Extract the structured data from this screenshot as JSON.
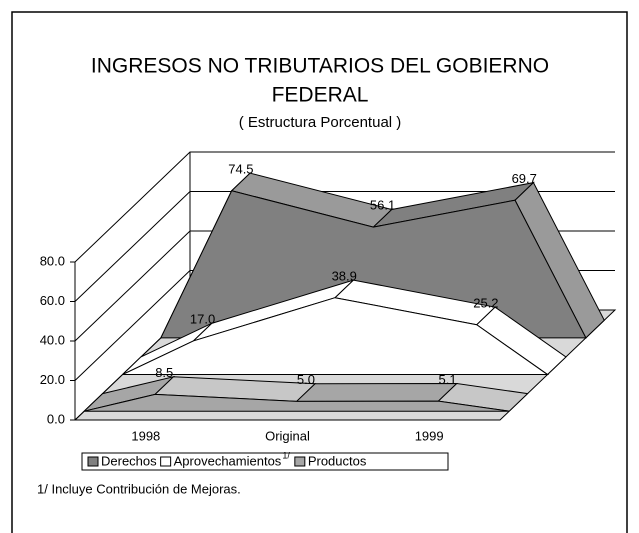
{
  "chart_data": {
    "type": "area3d",
    "title_lines": [
      "INGRESOS NO TRIBUTARIOS DEL GOBIERNO",
      "FEDERAL"
    ],
    "subtitle": "( Estructura Porcentual )",
    "categories": [
      "1998",
      "Original",
      "1999"
    ],
    "ylim": [
      0,
      80
    ],
    "yticks": [
      {
        "value": 0,
        "label": "0.0"
      },
      {
        "value": 20,
        "label": "20.0"
      },
      {
        "value": 40,
        "label": "40.0"
      },
      {
        "value": 60,
        "label": "60.0"
      },
      {
        "value": 80,
        "label": "80.0"
      }
    ],
    "series": [
      {
        "name": "Derechos",
        "color": "#808080",
        "values": [
          74.5,
          56.1,
          69.7
        ],
        "value_labels": [
          "74.5",
          "56.1",
          "69.7"
        ]
      },
      {
        "name": "Aprovechamientos",
        "name_note": "1/",
        "color": "#ffffff",
        "values": [
          17.0,
          38.9,
          25.2
        ],
        "value_labels": [
          "17.0",
          "38.9",
          "25.2"
        ]
      },
      {
        "name": "Productos",
        "color": "#a6a6a6",
        "values": [
          8.5,
          5.0,
          5.1
        ],
        "value_labels": [
          "8.5",
          "5.0",
          "5.1"
        ]
      }
    ],
    "footnote": "1/ Incluye Contribución de Mejoras."
  }
}
